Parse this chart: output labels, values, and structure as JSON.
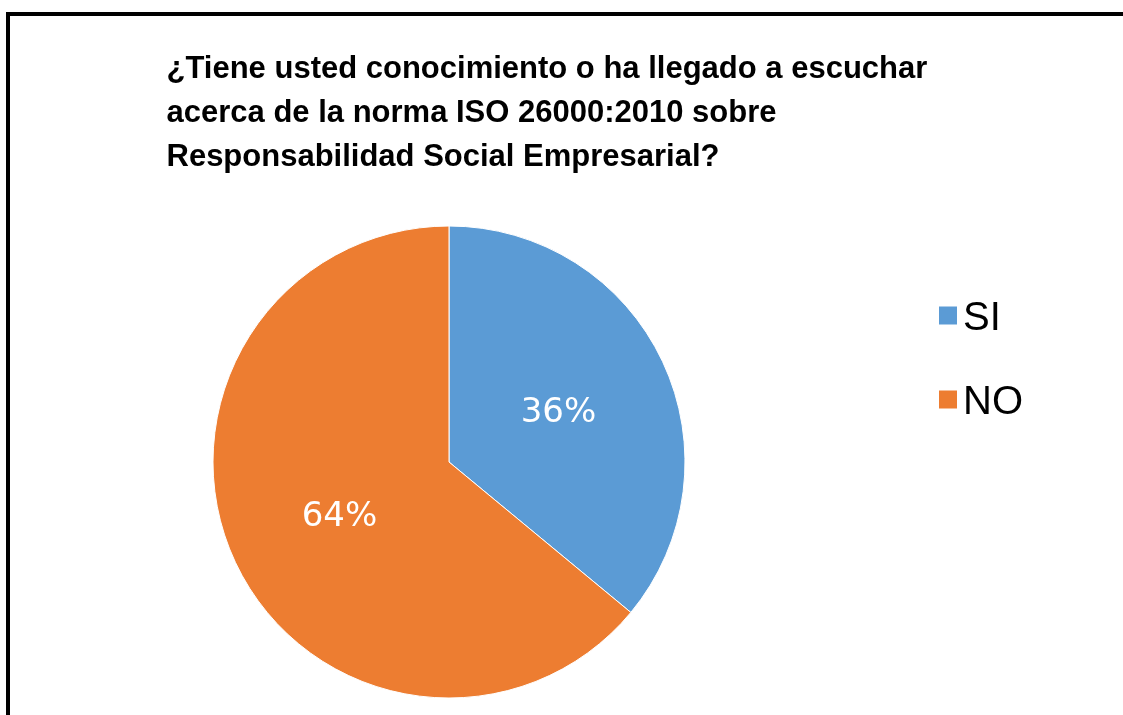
{
  "chart_data": {
    "type": "pie",
    "title": "¿Tiene usted conocimiento o ha llegado a escuchar acerca de la norma ISO 26000:2010 sobre Responsabilidad Social Empresarial?",
    "categories": [
      "SI",
      "NO"
    ],
    "values": [
      36,
      64
    ],
    "colors": [
      "#5b9bd5",
      "#ed7d31"
    ],
    "value_labels": [
      "36%",
      "64%"
    ],
    "legend": "right"
  }
}
